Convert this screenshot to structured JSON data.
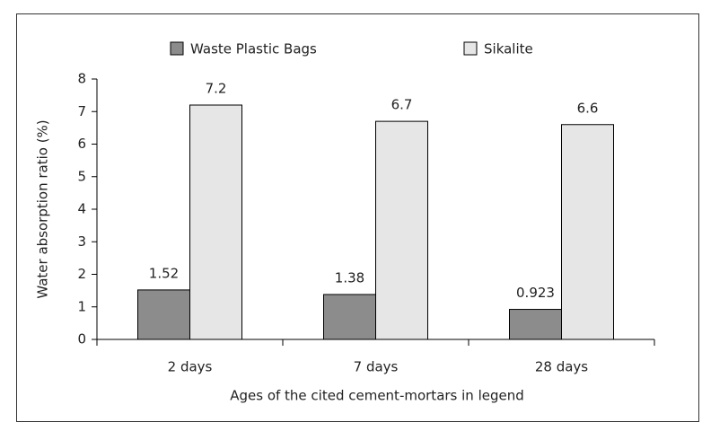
{
  "chart_data": {
    "type": "bar",
    "categories": [
      "2 days",
      "7 days",
      "28 days"
    ],
    "series": [
      {
        "name": "Waste Plastic Bags",
        "color": "#8c8c8c",
        "values": [
          1.52,
          1.38,
          0.923
        ]
      },
      {
        "name": "Sikalite",
        "color": "#e6e6e6",
        "values": [
          7.2,
          6.7,
          6.6
        ]
      }
    ],
    "ylabel": "Water absorption ratio (%)",
    "xlabel": "Ages of the cited cement-mortars in legend",
    "ylim": [
      0,
      8
    ],
    "yticks": [
      0,
      1,
      2,
      3,
      4,
      5,
      6,
      7,
      8
    ],
    "legend": "top"
  }
}
